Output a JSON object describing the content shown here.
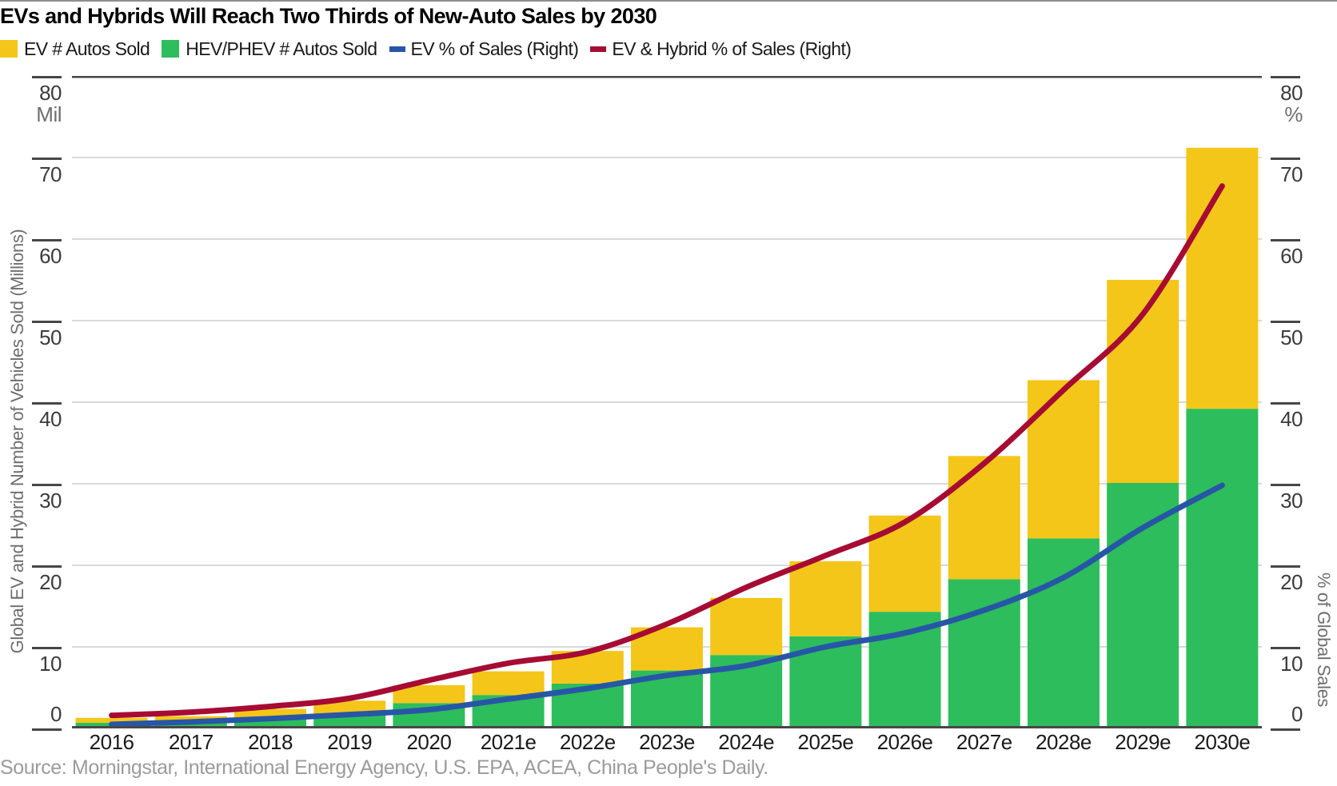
{
  "title": "EVs and Hybrids Will Reach Two Thirds of New-Auto Sales by 2030",
  "source": "Source: Morningstar, International Energy Agency, U.S. EPA, ACEA, China People's Daily.",
  "colors": {
    "ev_bar_yellow": "#F4C619",
    "hev_bar_green": "#2DBD5C",
    "ev_pct_line_blue": "#2856A6",
    "ev_hybrid_pct_line_red": "#A60C33",
    "gridline_light": "#d9d9d9",
    "gridline_dark": "#474747",
    "top_rule_gray": "#8e8e8e"
  },
  "legend": {
    "items": [
      {
        "label": "EV # Autos Sold",
        "swatch": "square",
        "color": "#F4C619"
      },
      {
        "label": "HEV/PHEV # Autos Sold",
        "swatch": "square",
        "color": "#2DBD5C"
      },
      {
        "label": "EV % of Sales (Right)",
        "swatch": "dash",
        "color": "#2856A6"
      },
      {
        "label": "EV & Hybrid % of Sales (Right)",
        "swatch": "dash",
        "color": "#A60C33"
      }
    ]
  },
  "left_axis": {
    "title": "Global EV and Hybrid Number of Vehicles Sold (Millions)",
    "unit_label": "Mil",
    "tick_labels": [
      "80",
      "70",
      "60",
      "50",
      "40",
      "30",
      "20",
      "10",
      "0"
    ],
    "range": [
      0,
      80
    ]
  },
  "right_axis": {
    "title": "% of Global Sales",
    "unit_label": "%",
    "tick_labels": [
      "80",
      "70",
      "60",
      "50",
      "40",
      "30",
      "20",
      "10",
      "0"
    ],
    "range": [
      0,
      80
    ]
  },
  "chart_data": {
    "type": "combo-stacked-bar-line",
    "categories": [
      "2016",
      "2017",
      "2018",
      "2019",
      "2020",
      "2021e",
      "2022e",
      "2023e",
      "2024e",
      "2025e",
      "2026e",
      "2027e",
      "2028e",
      "2029e",
      "2030e"
    ],
    "series": [
      {
        "name": "EV # Autos Sold",
        "type": "bar",
        "stack": "top",
        "axis": "left",
        "color": "#F4C619",
        "values": [
          0.6,
          0.6,
          1.1,
          1.6,
          2.2,
          2.9,
          4.0,
          5.3,
          7.0,
          9.2,
          11.8,
          15.1,
          19.4,
          24.9,
          32.0
        ]
      },
      {
        "name": "HEV/PHEV # Autos Sold",
        "type": "bar",
        "stack": "bottom",
        "axis": "left",
        "color": "#2DBD5C",
        "values": [
          0.7,
          0.9,
          1.3,
          1.8,
          3.1,
          4.1,
          5.5,
          7.1,
          9.0,
          11.3,
          14.3,
          18.3,
          23.3,
          30.1,
          39.2
        ]
      },
      {
        "name": "EV % of Sales (Right)",
        "type": "line",
        "axis": "right",
        "color": "#2856A6",
        "values": [
          0.5,
          0.8,
          1.2,
          1.7,
          2.3,
          3.6,
          4.9,
          6.5,
          7.7,
          10.0,
          11.7,
          14.5,
          18.5,
          24.6,
          29.8
        ]
      },
      {
        "name": "EV & Hybrid % of Sales (Right)",
        "type": "line",
        "axis": "right",
        "color": "#A60C33",
        "values": [
          1.6,
          2.0,
          2.7,
          3.7,
          5.9,
          8.0,
          9.4,
          12.8,
          17.3,
          21.2,
          25.3,
          32.5,
          41.5,
          50.8,
          66.5
        ]
      }
    ],
    "title": "EVs and Hybrids Will Reach Two Thirds of New-Auto Sales by 2030",
    "left_ylabel": "Global EV and Hybrid Number of Vehicles Sold (Millions)",
    "right_ylabel": "% of Global Sales",
    "left_ylim": [
      0,
      80
    ],
    "right_ylim": [
      0,
      80
    ],
    "grid": "horizontal",
    "legend_position": "top"
  }
}
